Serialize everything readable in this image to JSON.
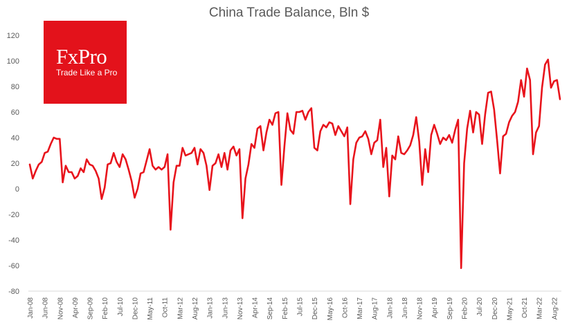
{
  "logo": {
    "brand": "FxPro",
    "tagline": "Trade Like a Pro",
    "color": "#e3121b"
  },
  "chart_data": {
    "type": "line",
    "title": "China Trade Balance, Bln $",
    "xlabel": "",
    "ylabel": "",
    "ylim": [
      -80,
      120
    ],
    "yticks": [
      -80,
      -60,
      -40,
      -20,
      0,
      20,
      40,
      60,
      80,
      100,
      120
    ],
    "grid": false,
    "legend": "none",
    "line_color": "#e8141c",
    "x_tick_labels": [
      "Jan-08",
      "Jun-08",
      "Nov-08",
      "Apr-09",
      "Sep-09",
      "Feb-10",
      "Jul-10",
      "Dec-10",
      "May-11",
      "Oct-11",
      "Mar-12",
      "Aug-12",
      "Jan-13",
      "Jun-13",
      "Nov-13",
      "Apr-14",
      "Sep-14",
      "Feb-15",
      "Jul-15",
      "Dec-15",
      "May-16",
      "Oct-16",
      "Mar-17",
      "Aug-17",
      "Jan-18",
      "Jun-18",
      "Nov-18",
      "Apr-19",
      "Sep-19",
      "Feb-20",
      "Jul-20",
      "Dec-20",
      "May-21",
      "Oct-21",
      "Mar-22",
      "Aug-22"
    ],
    "series": [
      {
        "values": [
          19,
          8,
          14,
          19,
          21,
          28,
          29,
          35,
          40,
          39,
          39,
          5,
          18,
          13,
          13,
          8,
          10,
          16,
          13,
          23,
          19,
          18,
          14,
          8,
          -8,
          1,
          19,
          20,
          28,
          21,
          17,
          27,
          23,
          15,
          6,
          -7,
          0,
          12,
          13,
          22,
          31,
          18,
          15,
          17,
          15,
          17,
          27,
          -32,
          5,
          18,
          18,
          32,
          26,
          27,
          28,
          32,
          19,
          31,
          28,
          18,
          -1,
          18,
          20,
          27,
          17,
          28,
          15,
          30,
          33,
          26,
          31,
          -23,
          8,
          19,
          35,
          32,
          47,
          49,
          30,
          44,
          54,
          50,
          59,
          60,
          3,
          33,
          59,
          46,
          43,
          60,
          60,
          61,
          54,
          60,
          63,
          32,
          30,
          45,
          50,
          48,
          52,
          51,
          42,
          49,
          45,
          41,
          48,
          -12,
          23,
          36,
          40,
          41,
          45,
          39,
          27,
          36,
          38,
          54,
          17,
          32,
          -6,
          26,
          23,
          41,
          28,
          27,
          30,
          34,
          42,
          56,
          37,
          3,
          31,
          13,
          42,
          50,
          43,
          35,
          40,
          38,
          42,
          36,
          46,
          54,
          -62,
          20,
          47,
          61,
          44,
          60,
          58,
          35,
          58,
          75,
          76,
          62,
          38,
          12,
          41,
          43,
          52,
          57,
          60,
          68,
          85,
          72,
          94,
          85,
          27,
          44,
          49,
          79,
          97,
          101,
          79,
          84,
          85,
          70
        ]
      }
    ]
  }
}
